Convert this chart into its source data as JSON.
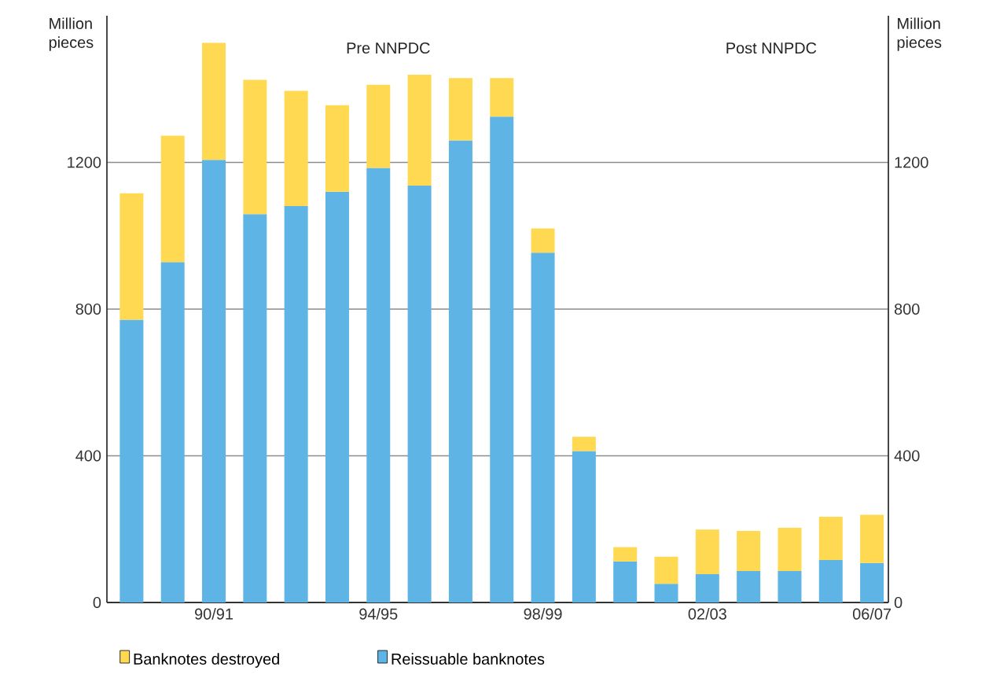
{
  "chart_data": {
    "type": "bar",
    "stacked": true,
    "ylabel": "Million pieces",
    "y2label": "Million pieces",
    "annotations": [
      "Pre NNPDC",
      "Post NNPDC"
    ],
    "categories": [
      null,
      null,
      "90/91",
      null,
      null,
      null,
      "94/95",
      null,
      null,
      null,
      "98/99",
      null,
      null,
      null,
      "02/03",
      null,
      null,
      null,
      "06/07"
    ],
    "series": [
      {
        "name": "Reissuable banknotes",
        "color": "#5eb5e5",
        "values": [
          771,
          928,
          1207,
          1059,
          1081,
          1120,
          1185,
          1137,
          1260,
          1325,
          954,
          413,
          112,
          51,
          77,
          86,
          86,
          116,
          108
        ]
      },
      {
        "name": "Banknotes destroyed",
        "color": "#ffd952",
        "values": [
          345,
          345,
          319,
          366,
          314,
          236,
          227,
          302,
          170,
          105,
          66,
          39,
          39,
          74,
          122,
          109,
          118,
          118,
          131
        ]
      }
    ],
    "ylim": [
      0,
      1600
    ],
    "yticks": [
      0,
      400,
      800,
      1200
    ],
    "y2lim": [
      0,
      1600
    ],
    "y2ticks": [
      0,
      400,
      800,
      1200
    ],
    "grid": "y",
    "legend": "bottom"
  }
}
